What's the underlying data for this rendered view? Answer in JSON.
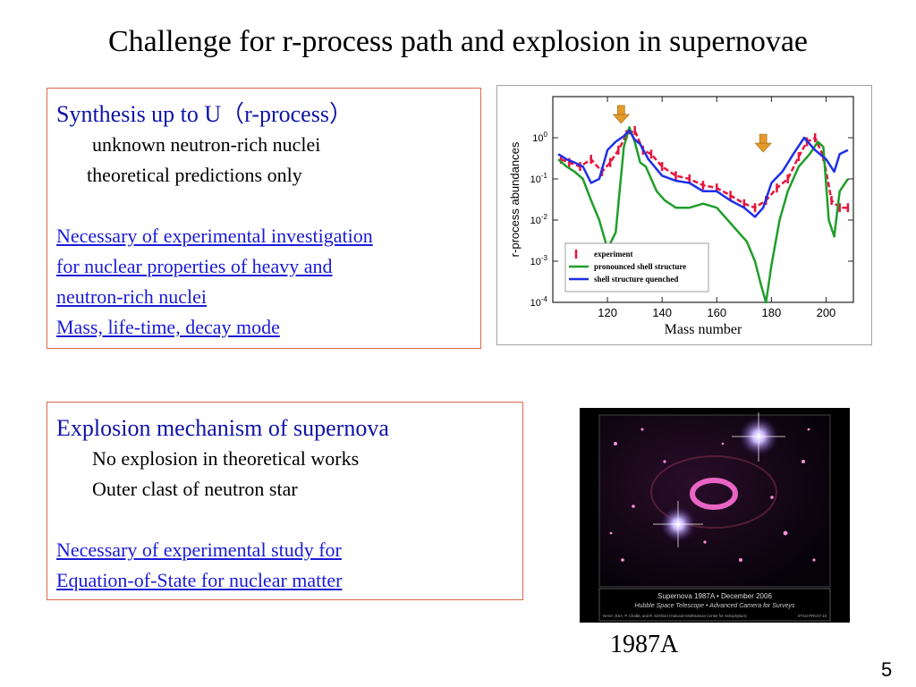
{
  "title": "Challenge for r-process path and explosion in supernovae",
  "box1": {
    "heading": "Synthesis up to U（r-process）",
    "line1": "unknown neutron-rich nuclei",
    "line2": "theoretical predictions only",
    "links": [
      "Necessary of experimental investigation",
      "for nuclear properties of heavy and",
      "neutron-rich nuclei",
      "Mass, life-time, decay mode"
    ]
  },
  "box2": {
    "heading": "Explosion mechanism of supernova",
    "line1": "No explosion in theoretical works",
    "line2": "Outer clast of neutron star",
    "links": [
      "Necessary of experimental study for",
      "Equation-of-State for nuclear matter"
    ]
  },
  "chart_data": {
    "type": "line",
    "title": "",
    "xlabel": "Mass number",
    "ylabel": "r-process abundances",
    "xlim": [
      100,
      210
    ],
    "ylim": [
      0.0001,
      10
    ],
    "yscale": "log",
    "xticks": [
      120,
      140,
      160,
      180,
      200
    ],
    "yticks": [
      "10^0",
      "10^-1",
      "10^-2",
      "10^-3",
      "10^-4"
    ],
    "legend_position": "bottom-left",
    "series": [
      {
        "name": "experiment",
        "color": "#e8143c",
        "x": [
          103,
          106,
          110,
          114,
          118,
          121,
          124,
          127,
          130,
          133,
          136,
          140,
          145,
          150,
          155,
          160,
          165,
          170,
          174,
          178,
          182,
          186,
          190,
          193,
          196,
          199,
          202,
          205,
          208
        ],
        "y": [
          0.3,
          0.25,
          0.2,
          0.3,
          0.15,
          0.25,
          0.5,
          1.2,
          1.5,
          0.5,
          0.4,
          0.2,
          0.12,
          0.1,
          0.07,
          0.06,
          0.04,
          0.025,
          0.02,
          0.03,
          0.06,
          0.1,
          0.35,
          0.8,
          1.0,
          0.35,
          0.03,
          0.02,
          0.02
        ]
      },
      {
        "name": "pronounced shell structure",
        "color": "#1f9e2a",
        "x": [
          102,
          105,
          108,
          111,
          114,
          117,
          120,
          123,
          126,
          128,
          130,
          132,
          134,
          136,
          138,
          141,
          145,
          150,
          155,
          160,
          164,
          168,
          171,
          174,
          176,
          178,
          180,
          183,
          186,
          190,
          194,
          197,
          199,
          201,
          203,
          205,
          208
        ],
        "y": [
          0.3,
          0.2,
          0.15,
          0.1,
          0.03,
          0.01,
          0.002,
          0.005,
          0.6,
          1.8,
          0.8,
          0.25,
          0.2,
          0.1,
          0.05,
          0.03,
          0.02,
          0.02,
          0.025,
          0.02,
          0.01,
          0.005,
          0.003,
          0.001,
          0.0003,
          0.0001,
          0.0008,
          0.01,
          0.05,
          0.2,
          0.4,
          0.8,
          0.6,
          0.01,
          0.004,
          0.05,
          0.1
        ]
      },
      {
        "name": "shell structure quenched",
        "color": "#1d2fe8",
        "x": [
          102,
          105,
          108,
          111,
          114,
          117,
          120,
          123,
          126,
          128,
          130,
          132,
          135,
          140,
          145,
          150,
          155,
          160,
          165,
          170,
          174,
          177,
          180,
          184,
          188,
          192,
          196,
          200,
          203,
          205,
          208
        ],
        "y": [
          0.4,
          0.3,
          0.25,
          0.2,
          0.08,
          0.1,
          0.5,
          0.8,
          1.1,
          1.5,
          0.9,
          0.7,
          0.3,
          0.12,
          0.09,
          0.08,
          0.05,
          0.05,
          0.03,
          0.02,
          0.012,
          0.02,
          0.08,
          0.15,
          0.4,
          1.0,
          0.5,
          0.3,
          0.15,
          0.4,
          0.5
        ]
      }
    ]
  },
  "image": {
    "caption": "1987A",
    "inset_title": "Supernova 1987A • December 2006",
    "inset_subtitle": "Hubble Space Telescope • Advanced Camera for Surveys",
    "inset_credit": "NASA, ESA, P. Challis, and R. Kirshner (Harvard-Smithsonian Center for Astrophysics)",
    "inset_id": "STScI-PRC07-10"
  },
  "page_number": "5",
  "colors": {
    "heading_blue": "#0e13a8",
    "link_blue": "#1b1bd6",
    "box_border": "#d9694a",
    "arrow_orange": "#e39a2b"
  }
}
